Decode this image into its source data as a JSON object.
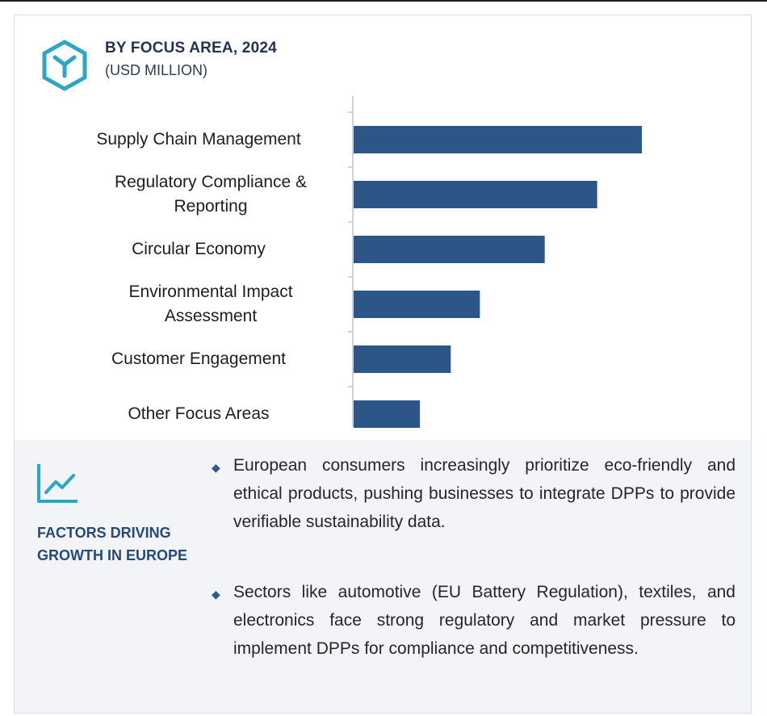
{
  "header": {
    "title": "BY FOCUS AREA, 2024",
    "subtitle": "(USD MILLION)",
    "icon": "hexagon-y-logo-icon"
  },
  "chart_data": {
    "type": "bar",
    "orientation": "horizontal",
    "title": "BY FOCUS AREA, 2024",
    "ylabel": "(USD MILLION)",
    "categories": [
      "Supply Chain Management",
      "Regulatory Compliance & Reporting",
      "Circular Economy",
      "Environmental Impact Assessment",
      "Customer Engagement",
      "Other Focus Areas"
    ],
    "values": [
      100,
      84.5,
      66.3,
      43.8,
      33.7,
      23.0
    ],
    "xlim": [
      0,
      100
    ],
    "grid": false,
    "bar_color": "#2c5588"
  },
  "factors": {
    "icon": "line-chart-icon",
    "heading": "FACTORS DRIVING GROWTH IN EUROPE",
    "bullets": [
      "European consumers increasingly prioritize eco-friendly and ethical products, pushing businesses to integrate DPPs to provide verifiable sustainability data.",
      "Sectors like automotive (EU Battery Regulation), textiles, and electronics face strong regulatory and market pressure to implement DPPs for compliance and competitiveness."
    ]
  },
  "colors": {
    "accent": "#2aa6c6",
    "bar": "#2c5588",
    "heading": "#254a7a",
    "panel_bg": "#f3f4f7"
  }
}
